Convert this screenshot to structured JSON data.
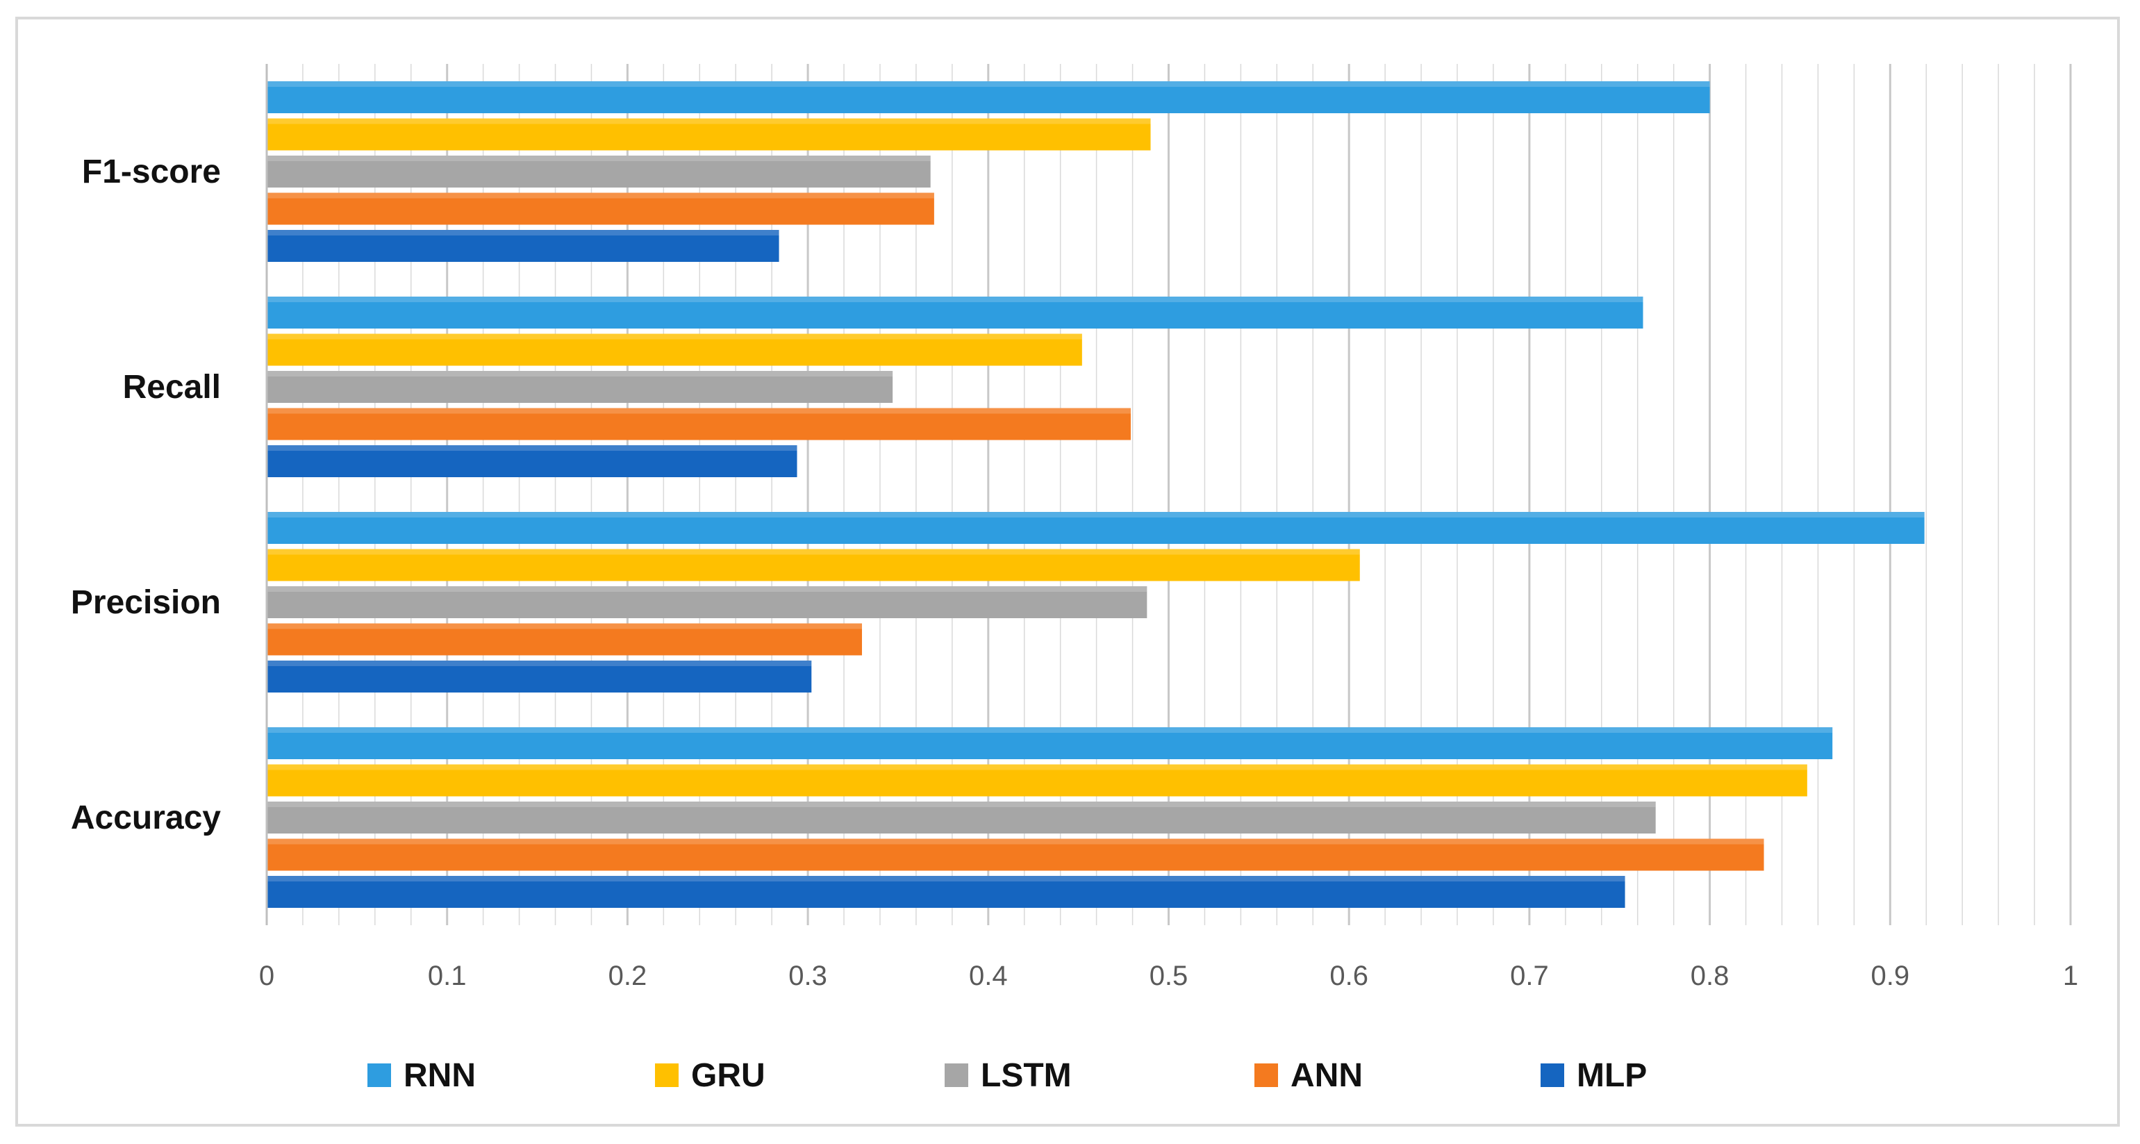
{
  "chart_data": {
    "type": "bar",
    "orientation": "horizontal",
    "title": "",
    "xlabel": "",
    "ylabel": "",
    "xlim": [
      0,
      1
    ],
    "x_ticks": [
      0,
      0.1,
      0.2,
      0.3,
      0.4,
      0.5,
      0.6,
      0.7,
      0.8,
      0.9,
      1
    ],
    "x_tick_labels": [
      "0",
      "0.1",
      "0.2",
      "0.3",
      "0.4",
      "0.5",
      "0.6",
      "0.7",
      "0.8",
      "0.9",
      "1"
    ],
    "minor_gridline_step": 0.02,
    "grid": true,
    "legend_position": "bottom",
    "categories": [
      "Accuracy",
      "Precision",
      "Recall",
      "F1-score"
    ],
    "series": [
      {
        "name": "MLP",
        "color": "#1565c0",
        "values": [
          0.753,
          0.302,
          0.294,
          0.284
        ]
      },
      {
        "name": "ANN",
        "color": "#f47a1f",
        "values": [
          0.83,
          0.33,
          0.479,
          0.37
        ]
      },
      {
        "name": "LSTM",
        "color": "#a6a6a6",
        "values": [
          0.77,
          0.488,
          0.347,
          0.368
        ]
      },
      {
        "name": "GRU",
        "color": "#ffc000",
        "values": [
          0.854,
          0.606,
          0.452,
          0.49
        ]
      },
      {
        "name": "RNN",
        "color": "#2e9de0",
        "values": [
          0.868,
          0.919,
          0.763,
          0.8
        ]
      }
    ],
    "legend_order": [
      "RNN",
      "GRU",
      "LSTM",
      "ANN",
      "MLP"
    ]
  }
}
